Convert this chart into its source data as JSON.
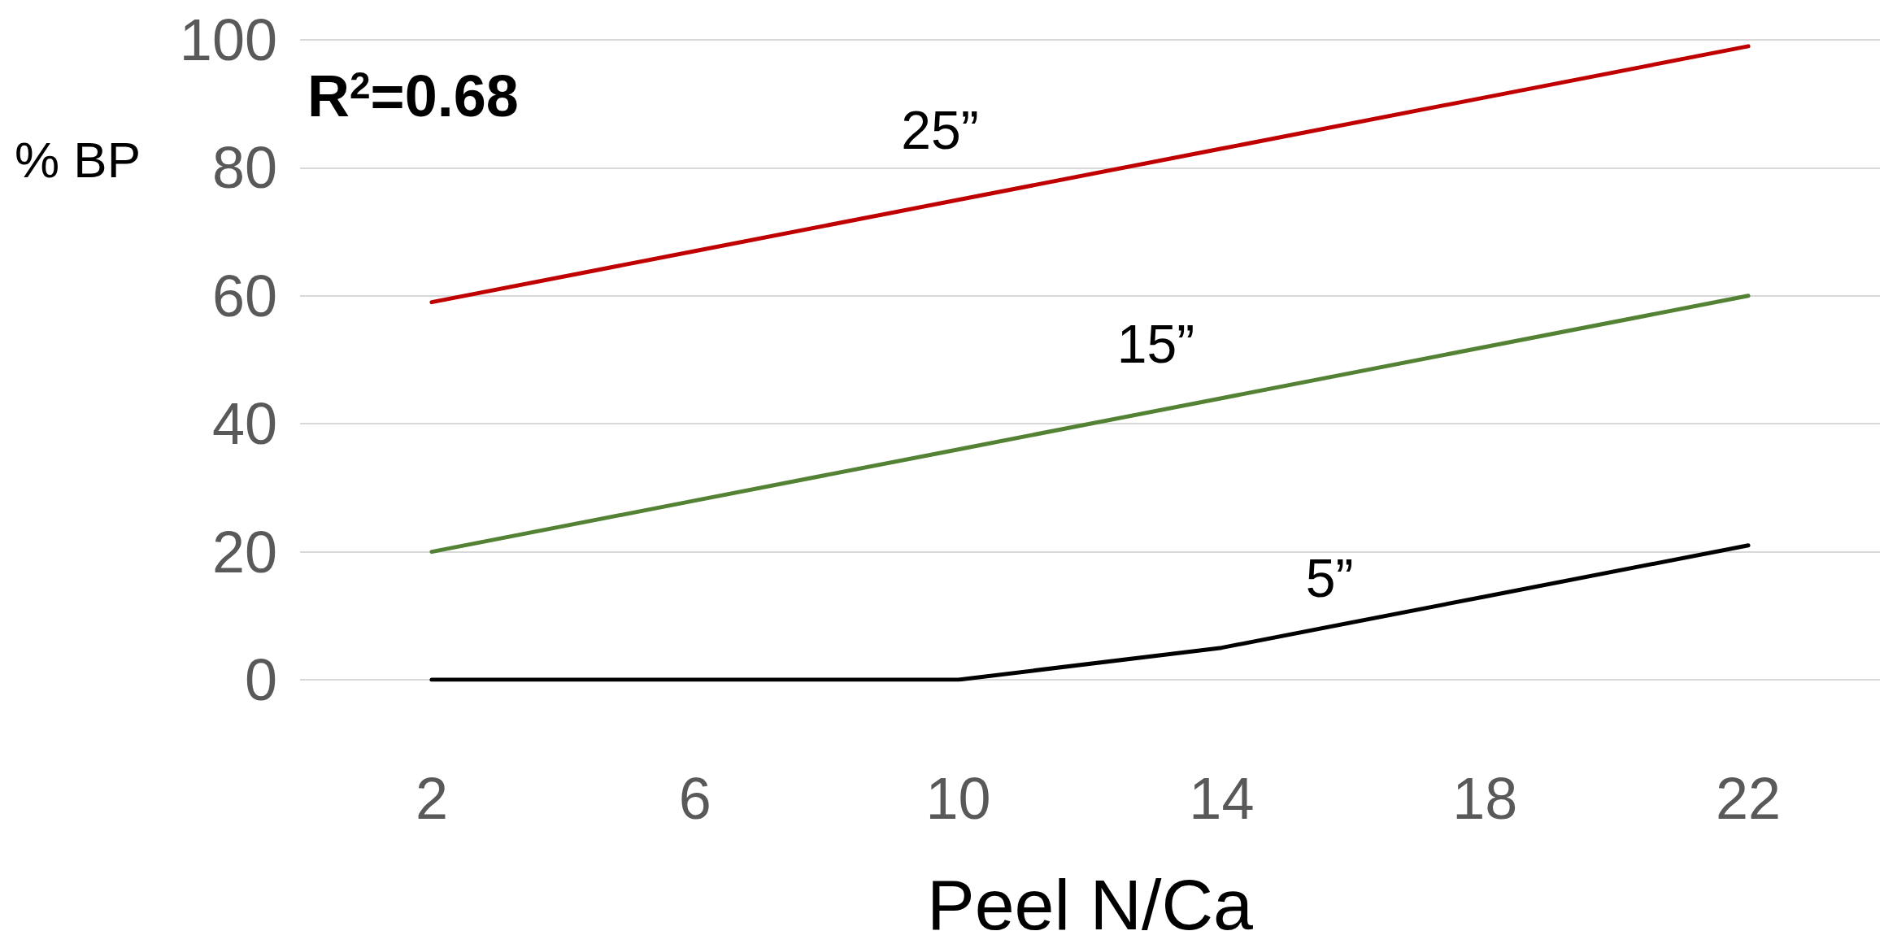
{
  "chart_data": {
    "type": "line",
    "xlabel": "Peel N/Ca",
    "ylabel": "% BP",
    "categories": [
      "2",
      "6",
      "10",
      "14",
      "18",
      "22"
    ],
    "series": [
      {
        "name": "25”",
        "color": "#c00000",
        "values": [
          59,
          67,
          75,
          83,
          91,
          99
        ]
      },
      {
        "name": "15”",
        "color": "#548235",
        "values": [
          20,
          28,
          36,
          44,
          52,
          60
        ]
      },
      {
        "name": "5”",
        "color": "#000000",
        "values": [
          0,
          0,
          0,
          5,
          13,
          21
        ]
      }
    ],
    "ylim": [
      0,
      100
    ],
    "yticks": [
      0,
      20,
      40,
      60,
      80,
      100
    ],
    "grid": "y",
    "legend": false,
    "marker": "none",
    "line_style": "solid",
    "annotations": [
      "R$^{2}$=0.68"
    ]
  }
}
